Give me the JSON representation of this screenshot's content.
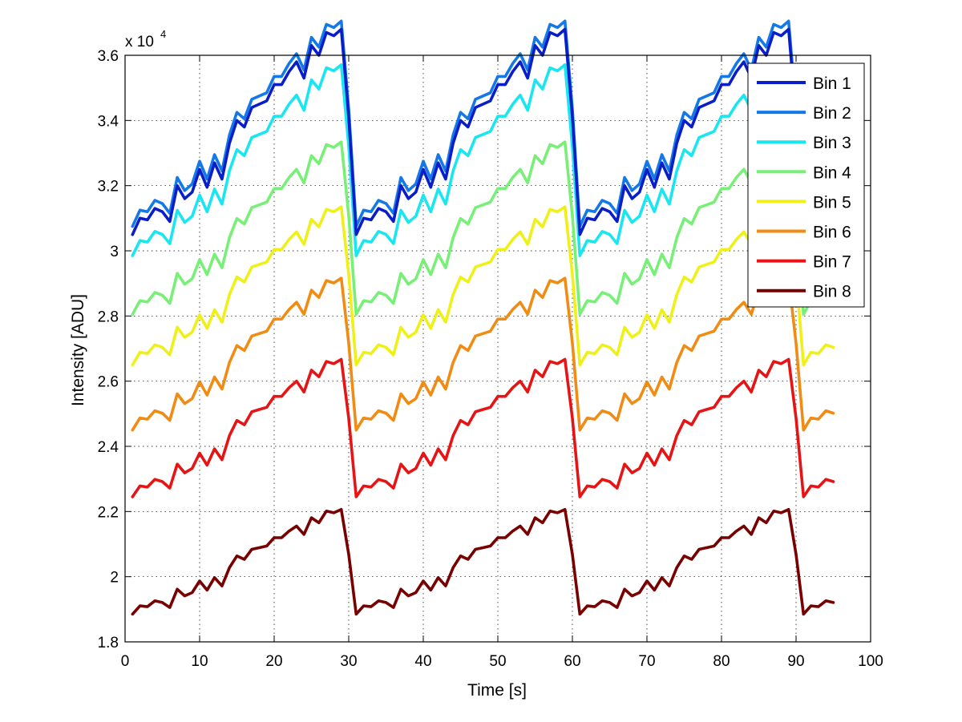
{
  "chart_data": {
    "type": "line",
    "title": "",
    "xlabel": "Time [s]",
    "ylabel": "Intensity [ADU]",
    "y_multiplier": {
      "base": "x 10",
      "exponent": "4"
    },
    "xlim": [
      0,
      100
    ],
    "ylim": [
      18000,
      36000
    ],
    "x_ticks": [
      0,
      10,
      20,
      30,
      40,
      50,
      60,
      70,
      80,
      90,
      100
    ],
    "y_ticks": [
      18000,
      20000,
      22000,
      24000,
      26000,
      28000,
      30000,
      32000,
      34000,
      36000
    ],
    "x_tick_labels": [
      "0",
      "10",
      "20",
      "30",
      "40",
      "50",
      "60",
      "70",
      "80",
      "90",
      "100"
    ],
    "y_tick_labels": [
      "1.8",
      "2",
      "2.2",
      "2.4",
      "2.6",
      "2.8",
      "3",
      "3.2",
      "3.4",
      "3.6"
    ],
    "grid": true,
    "legend_position": "top-right",
    "base_pattern": [
      0,
      0.5,
      0.45,
      0.8,
      0.7,
      0.4,
      1.5,
      1.1,
      1.3,
      2.0,
      1.45,
      2.2,
      1.7,
      2.8,
      3.5,
      3.3,
      3.9,
      4.0,
      4.1,
      4.6,
      4.6,
      5.0,
      5.3,
      4.8,
      5.8,
      5.5,
      6.2,
      6.1,
      6.3,
      3.6
    ],
    "x_start": 1,
    "x_end": 95,
    "period": 30,
    "series": [
      {
        "name": "Bin 1",
        "color": "#0a1ec8",
        "base": 30500,
        "scale": 1.0
      },
      {
        "name": "Bin 2",
        "color": "#1478e6",
        "base": 30750,
        "scale": 1.0
      },
      {
        "name": "Bin 3",
        "color": "#19e6f0",
        "base": 29850,
        "scale": 0.93
      },
      {
        "name": "Bin 4",
        "color": "#78f078",
        "base": 28050,
        "scale": 0.84
      },
      {
        "name": "Bin 5",
        "color": "#f0f019",
        "base": 26500,
        "scale": 0.77
      },
      {
        "name": "Bin 6",
        "color": "#f08c14",
        "base": 24500,
        "scale": 0.74
      },
      {
        "name": "Bin 7",
        "color": "#e61414",
        "base": 22450,
        "scale": 0.67
      },
      {
        "name": "Bin 8",
        "color": "#780000",
        "base": 18850,
        "scale": 0.51
      }
    ]
  }
}
